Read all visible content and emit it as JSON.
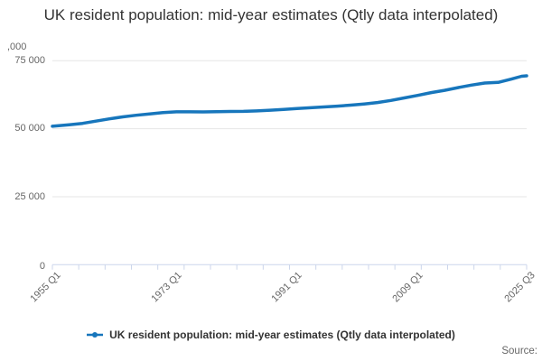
{
  "title": "UK resident population: mid-year estimates (Qtly data interpolated)",
  "y_axis": {
    "unit_label": ",000",
    "tick_labels": [
      "75 000",
      "50 000",
      "25 000",
      "0"
    ]
  },
  "x_axis": {
    "tick_labels": [
      "1955 Q1",
      "1973 Q1",
      "1991 Q1",
      "2009 Q1",
      "2025 Q3"
    ]
  },
  "legend": {
    "label": "UK resident population: mid-year estimates (Qtly data interpolated)"
  },
  "source_label": "Source:",
  "colors": {
    "line": "#1776bc",
    "axis": "#ccd6eb",
    "grid": "#e6e6e6",
    "tick_text": "#666666",
    "title_text": "#333333"
  },
  "chart_data": {
    "type": "line",
    "title": "UK resident population: mid-year estimates (Qtly data interpolated)",
    "xlabel": "",
    "ylabel": ",000",
    "unit": "thousands of people",
    "ylim": [
      0,
      75000
    ],
    "y_ticks": [
      0,
      25000,
      50000,
      75000
    ],
    "x_range": [
      1955.0,
      2025.75
    ],
    "x_tick_labels": [
      "1955 Q1",
      "1973 Q1",
      "1991 Q1",
      "2009 Q1",
      "2025 Q3"
    ],
    "x_tick_positions_years": [
      1955.0,
      1973.0,
      1991.0,
      2009.0,
      2025.75
    ],
    "grid": "horizontal",
    "legend_position": "bottom",
    "series": [
      {
        "name": "UK resident population: mid-year estimates (Qtly data interpolated)",
        "x": [
          1955.0,
          1957.5,
          1959.5,
          1961.5,
          1963.5,
          1965.5,
          1967.5,
          1969.5,
          1971.5,
          1973.5,
          1975.5,
          1977.5,
          1979.5,
          1981.5,
          1983.5,
          1985.5,
          1987.5,
          1989.5,
          1991.5,
          1993.5,
          1995.5,
          1997.5,
          1999.5,
          2001.5,
          2003.5,
          2005.5,
          2007.5,
          2009.5,
          2011.5,
          2013.5,
          2015.5,
          2017.5,
          2019.5,
          2021.5,
          2023.5,
          2025.0,
          2025.75
        ],
        "values": [
          50900,
          51430,
          51956,
          52807,
          53625,
          54350,
          54959,
          55461,
          55928,
          56223,
          56226,
          56190,
          56240,
          56352,
          56377,
          56554,
          56804,
          57076,
          57424,
          57714,
          58019,
          58314,
          58684,
          59113,
          59647,
          60413,
          61319,
          62260,
          63285,
          64106,
          65110,
          66040,
          66797,
          67026,
          68265,
          69300,
          69450
        ]
      }
    ]
  }
}
